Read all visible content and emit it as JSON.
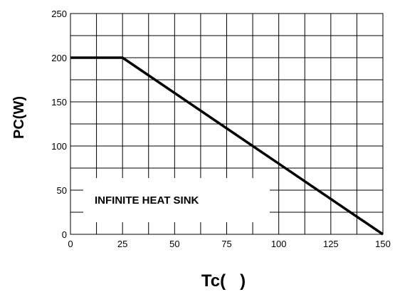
{
  "chart_data": {
    "type": "line",
    "title": "",
    "xlabel": "Tc(   )",
    "ylabel": "PC(W)",
    "xlim": [
      0,
      150
    ],
    "ylim": [
      0,
      250
    ],
    "x_ticks": [
      "0",
      "25",
      "50",
      "75",
      "100",
      "125",
      "150"
    ],
    "y_ticks": [
      "0",
      "50",
      "100",
      "150",
      "200",
      "250"
    ],
    "grid": true,
    "series": [
      {
        "x": [
          0,
          25,
          150
        ],
        "y": [
          200,
          200,
          0
        ]
      }
    ],
    "annotation": "INFINITE HEAT SINK",
    "colors": {
      "line": "#000000",
      "grid": "#000000",
      "background": "#ffffff"
    }
  }
}
